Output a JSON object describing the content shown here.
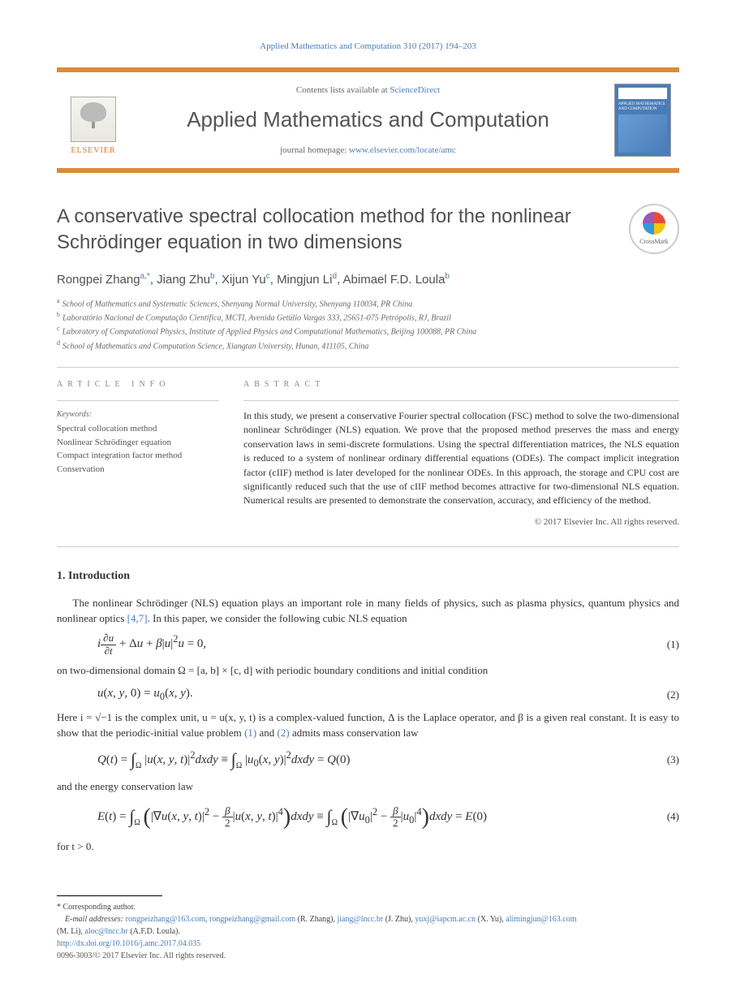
{
  "citation": "Applied Mathematics and Computation 310 (2017) 194–203",
  "header": {
    "elsevier_label": "ELSEVIER",
    "contents_prefix": "Contents lists available at ",
    "contents_link": "ScienceDirect",
    "journal_name": "Applied Mathematics and Computation",
    "homepage_prefix": "journal homepage: ",
    "homepage_link": "www.elsevier.com/locate/amc",
    "cover_title": "APPLIED MATHEMATICS AND COMPUTATION"
  },
  "title": "A conservative spectral collocation method for the nonlinear Schrödinger equation in two dimensions",
  "crossmark_label": "CrossMark",
  "authors": [
    {
      "name": "Rongpei Zhang",
      "aff": "a,*"
    },
    {
      "name": "Jiang Zhu",
      "aff": "b"
    },
    {
      "name": "Xijun Yu",
      "aff": "c"
    },
    {
      "name": "Mingjun Li",
      "aff": "d"
    },
    {
      "name": "Abimael F.D. Loula",
      "aff": "b"
    }
  ],
  "affiliations": [
    {
      "sup": "a",
      "text": "School of Mathematics and Systematic Sciences, Shenyang Normal University, Shenyang 110034, PR China"
    },
    {
      "sup": "b",
      "text": "Laboratório Nacional de Computação Científica, MCTI, Avenida Getúlio Vargas 333, 25651-075 Petrópolis, RJ, Brazil"
    },
    {
      "sup": "c",
      "text": "Laboratory of Computational Physics, Institute of Applied Physics and Computational Mathematics, Beijing 100088, PR China"
    },
    {
      "sup": "d",
      "text": "School of Mathematics and Computation Science, Xiangtan University, Hunan, 411105, China"
    }
  ],
  "info_label": "ARTICLE INFO",
  "abstract_label": "ABSTRACT",
  "keywords_label": "Keywords:",
  "keywords": [
    "Spectral collocation method",
    "Nonlinear Schrödinger equation",
    "Compact integration factor method",
    "Conservation"
  ],
  "abstract_text": "In this study, we present a conservative Fourier spectral collocation (FSC) method to solve the two-dimensional nonlinear Schrödinger (NLS) equation. We prove that the proposed method preserves the mass and energy conservation laws in semi-discrete formulations. Using the spectral differentiation matrices, the NLS equation is reduced to a system of nonlinear ordinary differential equations (ODEs). The compact implicit integration factor (cIIF) method is later developed for the nonlinear ODEs. In this approach, the storage and CPU cost are significantly reduced such that the use of cIIF method becomes attractive for two-dimensional NLS equation. Numerical results are presented to demonstrate the conservation, accuracy, and efficiency of the method.",
  "copyright_top": "© 2017 Elsevier Inc. All rights reserved.",
  "section1_heading": "1. Introduction",
  "para1_pre": "The nonlinear Schrödinger (NLS) equation plays an important role in many fields of physics, such as plasma physics, quantum physics and nonlinear optics ",
  "para1_ref": "[4,7]",
  "para1_post": ". In this paper, we consider the following cubic NLS equation",
  "para2": "on two-dimensional domain Ω = [a, b] × [c, d] with periodic boundary conditions and initial condition",
  "para3_pre": "Here i = √−1 is the complex unit, u = u(x, y, t) is a complex-valued function, Δ is the Laplace operator, and β is a given real constant. It is easy to show that the periodic-initial value problem ",
  "para3_ref1": "(1)",
  "para3_mid": " and ",
  "para3_ref2": "(2)",
  "para3_post": " admits mass conservation law",
  "para4": "and the energy conservation law",
  "para5": "for t > 0.",
  "eq1_num": "(1)",
  "eq2_num": "(2)",
  "eq3_num": "(3)",
  "eq4_num": "(4)",
  "footnotes": {
    "corr": "* Corresponding author.",
    "emails_label": "E-mail addresses: ",
    "emails": [
      {
        "addr": "rongpeizhang@163.com",
        "who": ""
      },
      {
        "addr": "rongpeizhang@gmail.com",
        "who": " (R. Zhang), "
      },
      {
        "addr": "jiang@lncc.br",
        "who": " (J. Zhu), "
      },
      {
        "addr": "yuxj@iapcm.ac.cn",
        "who": " (X. Yu), "
      },
      {
        "addr": "alimingjun@163.com",
        "who": ""
      }
    ],
    "emails_line2_pre": "(M. Li), ",
    "emails_line2_addr": "aloc@lncc.br",
    "emails_line2_post": " (A.F.D. Loula).",
    "doi": "http://dx.doi.org/10.1016/j.amc.2017.04.035",
    "copy_bottom": "0096-3003/© 2017 Elsevier Inc. All rights reserved."
  },
  "colors": {
    "bar": "#d98c3a",
    "link": "#4a7db8",
    "text": "#333333",
    "heading": "#505050"
  }
}
